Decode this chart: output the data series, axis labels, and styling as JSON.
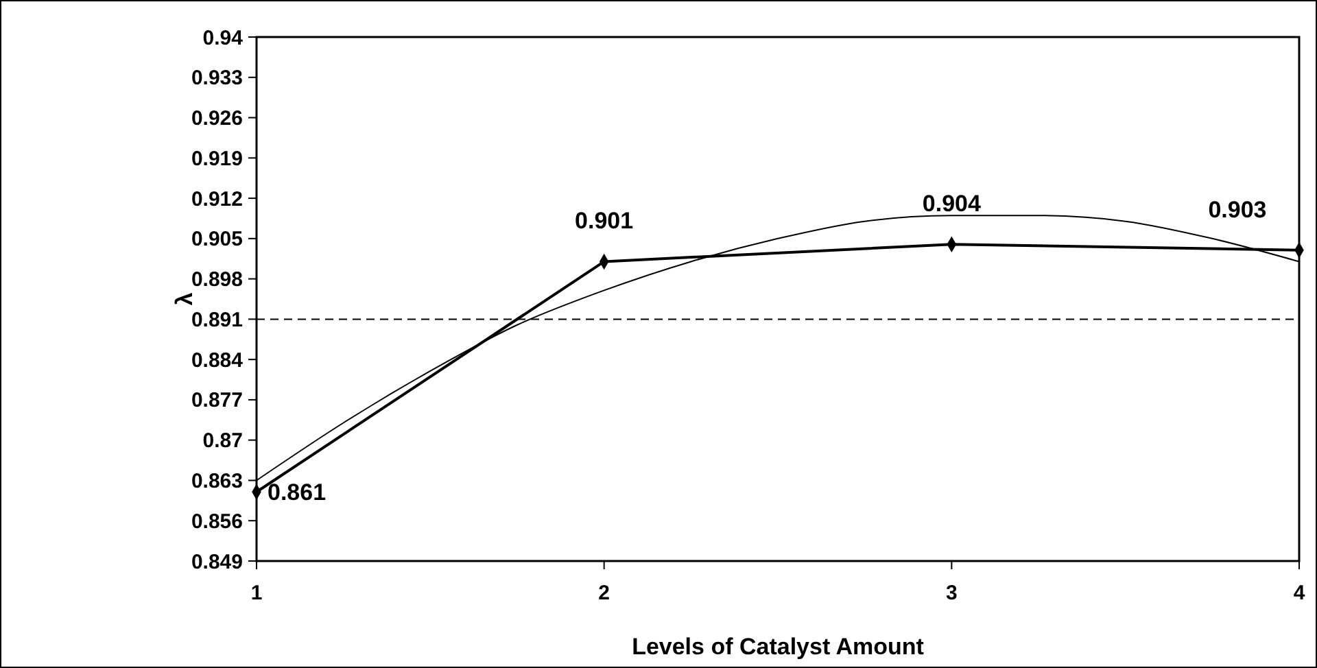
{
  "chart_data": {
    "type": "line",
    "xlabel": "Levels of Catalyst Amount",
    "ylabel": "λ",
    "xlim": [
      1,
      4
    ],
    "xticks": [
      1,
      2,
      3,
      4
    ],
    "ylim": [
      0.849,
      0.94
    ],
    "yticks": [
      0.849,
      0.856,
      0.863,
      0.87,
      0.877,
      0.884,
      0.891,
      0.898,
      0.905,
      0.912,
      0.919,
      0.926,
      0.933,
      0.94
    ],
    "grid": false,
    "series": [
      {
        "x": [
          1,
          2,
          3,
          4
        ],
        "values": [
          0.861,
          0.901,
          0.904,
          0.903
        ],
        "color": "#000000",
        "marker": "diamond",
        "line_style": "solid",
        "data_labels": true
      },
      {
        "type": "line",
        "x": [
          1,
          1.25,
          1.5,
          1.75,
          2,
          2.25,
          2.5,
          2.75,
          3,
          3.25,
          3.5,
          3.75,
          4
        ],
        "values": [
          0.863,
          0.873,
          0.882,
          0.89,
          0.896,
          0.901,
          0.905,
          0.908,
          0.909,
          0.909,
          0.908,
          0.905,
          0.901
        ],
        "color": "#000000",
        "marker": "none",
        "line_style": "solid"
      }
    ],
    "ref_lines": [
      {
        "axis": "y",
        "value": 0.891,
        "color": "#000000",
        "line_style": "dashed"
      }
    ]
  }
}
